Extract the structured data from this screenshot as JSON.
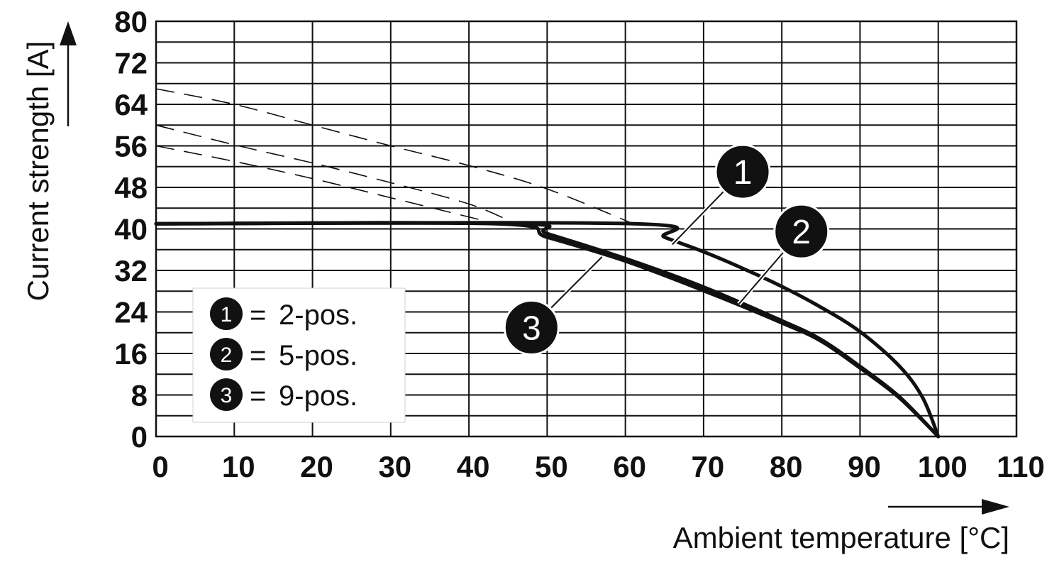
{
  "chart_data": {
    "type": "line",
    "xlabel": "Ambient temperature [°C]",
    "ylabel": "Current strength [A]",
    "xlim": [
      0,
      110
    ],
    "ylim": [
      0,
      80
    ],
    "x_ticks": [
      0,
      10,
      20,
      30,
      40,
      50,
      60,
      70,
      80,
      90,
      100,
      110
    ],
    "y_ticks": [
      0,
      8,
      16,
      24,
      32,
      40,
      48,
      56,
      64,
      72,
      80
    ],
    "y_minor_step": 4,
    "grid": true,
    "legend_position": "bottom-left",
    "legend": [
      {
        "id": "1",
        "sep": "=",
        "label": "2-pos."
      },
      {
        "id": "2",
        "sep": "=",
        "label": "5-pos."
      },
      {
        "id": "3",
        "sep": "=",
        "label": "9-pos."
      }
    ],
    "series": [
      {
        "id": "1",
        "derating": [
          [
            0,
            41
          ],
          [
            61,
            41
          ],
          [
            65,
            38.4
          ],
          [
            70,
            35.6
          ],
          [
            75,
            32.4
          ],
          [
            80,
            28.9
          ],
          [
            85,
            24.9
          ],
          [
            90,
            20.2
          ],
          [
            95,
            13.6
          ],
          [
            98,
            7.5
          ],
          [
            100,
            0
          ]
        ],
        "base": [
          [
            0,
            67
          ],
          [
            10,
            64
          ],
          [
            20,
            60
          ],
          [
            30,
            56
          ],
          [
            40,
            52.2
          ],
          [
            50,
            47.7
          ],
          [
            61,
            41
          ]
        ],
        "callout_on": [
          66,
          37
        ]
      },
      {
        "id": "2",
        "derating": [
          [
            0,
            41
          ],
          [
            46,
            41
          ],
          [
            50,
            39.1
          ],
          [
            60,
            34.3
          ],
          [
            70,
            28.8
          ],
          [
            80,
            22.3
          ],
          [
            85,
            18.7
          ],
          [
            90,
            13.5
          ],
          [
            95,
            7.7
          ],
          [
            100,
            0
          ]
        ],
        "base": [
          [
            0,
            60
          ],
          [
            10,
            56.2
          ],
          [
            20,
            52.7
          ],
          [
            30,
            48.9
          ],
          [
            40,
            44.8
          ],
          [
            46,
            41
          ]
        ],
        "callout_on": [
          74.5,
          25.5
        ]
      },
      {
        "id": "3",
        "derating": [
          [
            0,
            41
          ],
          [
            43.5,
            41
          ],
          [
            50,
            38.4
          ],
          [
            60,
            33.8
          ],
          [
            70,
            28.1
          ],
          [
            80,
            21.9
          ],
          [
            85,
            18.4
          ],
          [
            90,
            13.2
          ],
          [
            95,
            7.5
          ],
          [
            100,
            0
          ]
        ],
        "base": [
          [
            0,
            56
          ],
          [
            10,
            53
          ],
          [
            20,
            49.7
          ],
          [
            30,
            46
          ],
          [
            43.5,
            41
          ]
        ],
        "callout_on": [
          57,
          34.6
        ]
      }
    ],
    "callouts": [
      {
        "series": "1",
        "badge_at": [
          75,
          51
        ]
      },
      {
        "series": "2",
        "badge_at": [
          82.5,
          39.5
        ]
      },
      {
        "series": "3",
        "badge_at": [
          48,
          21
        ]
      }
    ]
  }
}
